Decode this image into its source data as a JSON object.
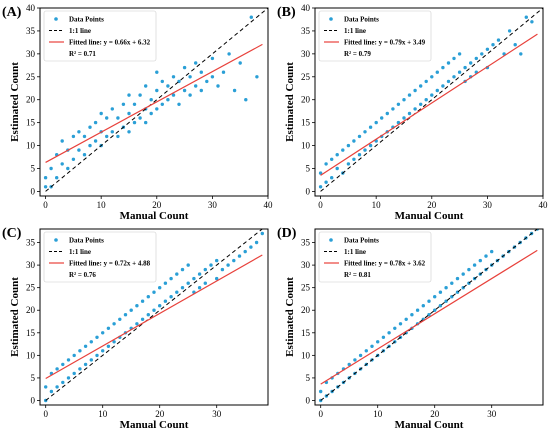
{
  "chart_data": [
    {
      "type": "scatter",
      "panel_label": "(A)",
      "xlabel": "Manual Count",
      "ylabel": "Estimated Count",
      "xlim": [
        -1,
        40
      ],
      "ylim": [
        -1,
        40
      ],
      "xticks": [
        0,
        10,
        20,
        30,
        40
      ],
      "yticks": [
        0,
        5,
        10,
        15,
        20,
        25,
        30,
        35,
        40
      ],
      "legend": [
        "Data Points",
        "1:1 line",
        "Fitted line: y = 0.66x + 6.32",
        "R² = 0.71"
      ],
      "legend_position": "top-left",
      "fit": {
        "slope": 0.66,
        "intercept": 6.32,
        "r2": 0.71
      },
      "colors": {
        "points": "#2a9fd6",
        "identity": "#000000",
        "fit": "#e8413b"
      },
      "points": [
        [
          0,
          1
        ],
        [
          0,
          3
        ],
        [
          1,
          1
        ],
        [
          1,
          5
        ],
        [
          2,
          3
        ],
        [
          2,
          8
        ],
        [
          3,
          6
        ],
        [
          3,
          11
        ],
        [
          4,
          5
        ],
        [
          4,
          9
        ],
        [
          5,
          7
        ],
        [
          5,
          12
        ],
        [
          6,
          9
        ],
        [
          6,
          13
        ],
        [
          7,
          8
        ],
        [
          7,
          12
        ],
        [
          8,
          10
        ],
        [
          8,
          14
        ],
        [
          9,
          11
        ],
        [
          9,
          15
        ],
        [
          10,
          10
        ],
        [
          10,
          13
        ],
        [
          10,
          17
        ],
        [
          11,
          12
        ],
        [
          11,
          16
        ],
        [
          12,
          13
        ],
        [
          12,
          18
        ],
        [
          13,
          12
        ],
        [
          13,
          16
        ],
        [
          14,
          14
        ],
        [
          14,
          19
        ],
        [
          15,
          13
        ],
        [
          15,
          17
        ],
        [
          15,
          21
        ],
        [
          16,
          15
        ],
        [
          16,
          19
        ],
        [
          17,
          16
        ],
        [
          17,
          21
        ],
        [
          18,
          15
        ],
        [
          18,
          18
        ],
        [
          18,
          23
        ],
        [
          19,
          17
        ],
        [
          19,
          20
        ],
        [
          20,
          18
        ],
        [
          20,
          22
        ],
        [
          20,
          26
        ],
        [
          21,
          19
        ],
        [
          21,
          24
        ],
        [
          22,
          20
        ],
        [
          22,
          23
        ],
        [
          23,
          21
        ],
        [
          23,
          25
        ],
        [
          24,
          19
        ],
        [
          24,
          24
        ],
        [
          25,
          22
        ],
        [
          25,
          27
        ],
        [
          26,
          21
        ],
        [
          26,
          25
        ],
        [
          27,
          23
        ],
        [
          27,
          28
        ],
        [
          28,
          22
        ],
        [
          28,
          26
        ],
        [
          29,
          24
        ],
        [
          30,
          25
        ],
        [
          30,
          29
        ],
        [
          31,
          23
        ],
        [
          32,
          26
        ],
        [
          33,
          30
        ],
        [
          34,
          22
        ],
        [
          35,
          28
        ],
        [
          36,
          20
        ],
        [
          37,
          38
        ],
        [
          38,
          25
        ]
      ]
    },
    {
      "type": "scatter",
      "panel_label": "(B)",
      "xlabel": "Manual Count",
      "ylabel": "Estimated Count",
      "xlim": [
        -1,
        40
      ],
      "ylim": [
        -1,
        40
      ],
      "xticks": [
        0,
        10,
        20,
        30,
        40
      ],
      "yticks": [
        0,
        5,
        10,
        15,
        20,
        25,
        30,
        35,
        40
      ],
      "legend": [
        "Data Points",
        "1:1 line",
        "Fitted line: y = 0.79x + 3.49",
        "R² = 0.79"
      ],
      "legend_position": "top-left",
      "fit": {
        "slope": 0.79,
        "intercept": 3.49,
        "r2": 0.79
      },
      "colors": {
        "points": "#2a9fd6",
        "identity": "#000000",
        "fit": "#e8413b"
      },
      "points": [
        [
          0,
          1
        ],
        [
          0,
          4
        ],
        [
          1,
          2
        ],
        [
          1,
          6
        ],
        [
          2,
          3
        ],
        [
          2,
          7
        ],
        [
          3,
          5
        ],
        [
          3,
          8
        ],
        [
          4,
          4
        ],
        [
          4,
          9
        ],
        [
          5,
          6
        ],
        [
          5,
          10
        ],
        [
          6,
          7
        ],
        [
          6,
          11
        ],
        [
          7,
          8
        ],
        [
          7,
          12
        ],
        [
          8,
          9
        ],
        [
          8,
          13
        ],
        [
          9,
          10
        ],
        [
          9,
          14
        ],
        [
          10,
          11
        ],
        [
          10,
          15
        ],
        [
          11,
          12
        ],
        [
          11,
          16
        ],
        [
          12,
          13
        ],
        [
          12,
          17
        ],
        [
          13,
          14
        ],
        [
          13,
          18
        ],
        [
          14,
          15
        ],
        [
          14,
          19
        ],
        [
          15,
          16
        ],
        [
          15,
          20
        ],
        [
          16,
          17
        ],
        [
          16,
          21
        ],
        [
          17,
          18
        ],
        [
          17,
          22
        ],
        [
          18,
          19
        ],
        [
          18,
          23
        ],
        [
          19,
          20
        ],
        [
          19,
          24
        ],
        [
          20,
          21
        ],
        [
          20,
          25
        ],
        [
          21,
          22
        ],
        [
          21,
          26
        ],
        [
          22,
          23
        ],
        [
          22,
          27
        ],
        [
          23,
          24
        ],
        [
          23,
          28
        ],
        [
          24,
          25
        ],
        [
          24,
          29
        ],
        [
          25,
          26
        ],
        [
          25,
          30
        ],
        [
          26,
          27
        ],
        [
          26,
          24
        ],
        [
          27,
          28
        ],
        [
          27,
          25
        ],
        [
          28,
          29
        ],
        [
          28,
          26
        ],
        [
          29,
          30
        ],
        [
          30,
          31
        ],
        [
          30,
          27
        ],
        [
          31,
          32
        ],
        [
          32,
          33
        ],
        [
          33,
          30
        ],
        [
          34,
          35
        ],
        [
          35,
          32
        ],
        [
          36,
          30
        ],
        [
          37,
          38
        ],
        [
          38,
          37
        ]
      ]
    },
    {
      "type": "scatter",
      "panel_label": "(C)",
      "xlabel": "Manual Count",
      "ylabel": "Estimated Count",
      "xlim": [
        -1,
        39
      ],
      "ylim": [
        -1,
        38
      ],
      "xticks": [
        0,
        10,
        20,
        30
      ],
      "yticks": [
        0,
        5,
        10,
        15,
        20,
        25,
        30,
        35
      ],
      "legend": [
        "Data Points",
        "1:1 line",
        "Fitted line: y = 0.72x + 4.88",
        "R² = 0.76"
      ],
      "legend_position": "top-left",
      "fit": {
        "slope": 0.72,
        "intercept": 4.88,
        "r2": 0.76
      },
      "colors": {
        "points": "#2a9fd6",
        "identity": "#000000",
        "fit": "#e8413b"
      },
      "points": [
        [
          0,
          0
        ],
        [
          0,
          3
        ],
        [
          1,
          2
        ],
        [
          1,
          6
        ],
        [
          2,
          3
        ],
        [
          2,
          7
        ],
        [
          3,
          4
        ],
        [
          3,
          8
        ],
        [
          4,
          5
        ],
        [
          4,
          9
        ],
        [
          5,
          6
        ],
        [
          5,
          10
        ],
        [
          6,
          7
        ],
        [
          6,
          11
        ],
        [
          7,
          8
        ],
        [
          7,
          12
        ],
        [
          8,
          9
        ],
        [
          8,
          13
        ],
        [
          9,
          10
        ],
        [
          9,
          14
        ],
        [
          10,
          11
        ],
        [
          10,
          15
        ],
        [
          11,
          12
        ],
        [
          11,
          16
        ],
        [
          12,
          13
        ],
        [
          12,
          17
        ],
        [
          13,
          14
        ],
        [
          13,
          18
        ],
        [
          14,
          15
        ],
        [
          14,
          19
        ],
        [
          15,
          16
        ],
        [
          15,
          20
        ],
        [
          16,
          17
        ],
        [
          16,
          21
        ],
        [
          17,
          18
        ],
        [
          17,
          22
        ],
        [
          18,
          19
        ],
        [
          18,
          23
        ],
        [
          19,
          20
        ],
        [
          19,
          24
        ],
        [
          20,
          21
        ],
        [
          20,
          25
        ],
        [
          21,
          22
        ],
        [
          21,
          26
        ],
        [
          22,
          23
        ],
        [
          22,
          27
        ],
        [
          23,
          24
        ],
        [
          23,
          28
        ],
        [
          24,
          25
        ],
        [
          24,
          29
        ],
        [
          25,
          26
        ],
        [
          25,
          30
        ],
        [
          26,
          27
        ],
        [
          26,
          24
        ],
        [
          27,
          28
        ],
        [
          27,
          25
        ],
        [
          28,
          29
        ],
        [
          28,
          26
        ],
        [
          29,
          30
        ],
        [
          30,
          31
        ],
        [
          30,
          27
        ],
        [
          31,
          29
        ],
        [
          32,
          30
        ],
        [
          33,
          31
        ],
        [
          34,
          32
        ],
        [
          35,
          33
        ],
        [
          36,
          34
        ],
        [
          37,
          35
        ],
        [
          38,
          37
        ]
      ]
    },
    {
      "type": "scatter",
      "panel_label": "(D)",
      "xlabel": "Manual Count",
      "ylabel": "Estimated Count",
      "xlim": [
        -1,
        39
      ],
      "ylim": [
        -1,
        38
      ],
      "xticks": [
        0,
        10,
        20,
        30
      ],
      "yticks": [
        0,
        5,
        10,
        15,
        20,
        25,
        30,
        35
      ],
      "legend": [
        "Data Points",
        "1:1 line",
        "Fitted line: y = 0.78x + 3.62",
        "R² = 0.81"
      ],
      "legend_position": "top-left",
      "fit": {
        "slope": 0.78,
        "intercept": 3.62,
        "r2": 0.81
      },
      "colors": {
        "points": "#2a9fd6",
        "identity": "#000000",
        "fit": "#e8413b"
      },
      "points": [
        [
          0,
          0
        ],
        [
          0,
          2
        ],
        [
          1,
          1
        ],
        [
          1,
          4
        ],
        [
          2,
          2
        ],
        [
          2,
          5
        ],
        [
          3,
          3
        ],
        [
          3,
          6
        ],
        [
          4,
          4
        ],
        [
          4,
          7
        ],
        [
          5,
          5
        ],
        [
          5,
          8
        ],
        [
          6,
          6
        ],
        [
          6,
          9
        ],
        [
          7,
          7
        ],
        [
          7,
          10
        ],
        [
          8,
          8
        ],
        [
          8,
          11
        ],
        [
          9,
          9
        ],
        [
          9,
          12
        ],
        [
          10,
          10
        ],
        [
          10,
          13
        ],
        [
          11,
          11
        ],
        [
          11,
          14
        ],
        [
          12,
          12
        ],
        [
          12,
          15
        ],
        [
          13,
          13
        ],
        [
          13,
          16
        ],
        [
          14,
          14
        ],
        [
          14,
          17
        ],
        [
          15,
          15
        ],
        [
          15,
          18
        ],
        [
          16,
          16
        ],
        [
          16,
          19
        ],
        [
          17,
          17
        ],
        [
          17,
          20
        ],
        [
          18,
          18
        ],
        [
          18,
          21
        ],
        [
          19,
          19
        ],
        [
          19,
          22
        ],
        [
          20,
          20
        ],
        [
          20,
          23
        ],
        [
          21,
          21
        ],
        [
          21,
          24
        ],
        [
          22,
          22
        ],
        [
          22,
          25
        ],
        [
          23,
          23
        ],
        [
          23,
          26
        ],
        [
          24,
          24
        ],
        [
          24,
          27
        ],
        [
          25,
          25
        ],
        [
          25,
          28
        ],
        [
          26,
          26
        ],
        [
          26,
          29
        ],
        [
          27,
          27
        ],
        [
          27,
          30
        ],
        [
          28,
          28
        ],
        [
          28,
          31
        ],
        [
          29,
          29
        ],
        [
          29,
          32
        ],
        [
          30,
          30
        ],
        [
          30,
          33
        ],
        [
          31,
          31
        ],
        [
          32,
          32
        ],
        [
          33,
          33
        ],
        [
          34,
          34
        ],
        [
          35,
          35
        ],
        [
          36,
          36
        ],
        [
          37,
          37
        ],
        [
          38,
          38
        ]
      ]
    }
  ]
}
